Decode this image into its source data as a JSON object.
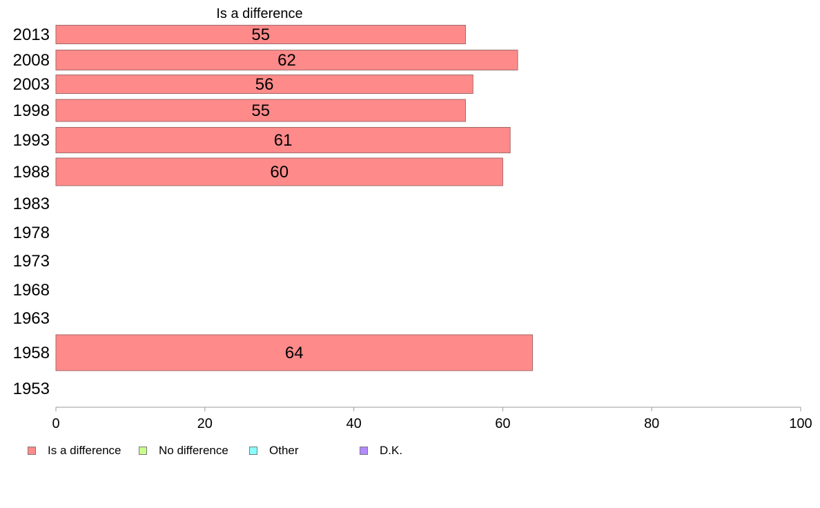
{
  "chart_data": {
    "type": "bar",
    "orientation": "horizontal",
    "title": "Is a difference",
    "categories": [
      "2013",
      "2008",
      "2003",
      "1998",
      "1993",
      "1988",
      "1983",
      "1978",
      "1973",
      "1968",
      "1963",
      "1958",
      "1953"
    ],
    "series": [
      {
        "name": "Is a difference",
        "values": [
          55,
          62,
          56,
          55,
          61,
          60,
          null,
          null,
          null,
          null,
          null,
          64,
          null
        ]
      }
    ],
    "data_labels": [
      "55",
      "62",
      "56",
      "55",
      "61",
      "60",
      "",
      "",
      "",
      "",
      "",
      "64",
      ""
    ],
    "xlim": [
      0,
      100
    ],
    "xticks": [
      "0",
      "20",
      "40",
      "60",
      "80",
      "100"
    ],
    "grid": false,
    "legend_position": "bottom-left",
    "legend": [
      {
        "label": "Is a difference",
        "color": "#ff8a8a"
      },
      {
        "label": "No difference",
        "color": "#c8ff8a"
      },
      {
        "label": "Other",
        "color": "#8affff"
      },
      {
        "label": "D.K.",
        "color": "#b48aff"
      }
    ],
    "bar_color": "#ff8a8a",
    "bar_stroke": "#a06a6a",
    "axis_color": "#999999"
  }
}
